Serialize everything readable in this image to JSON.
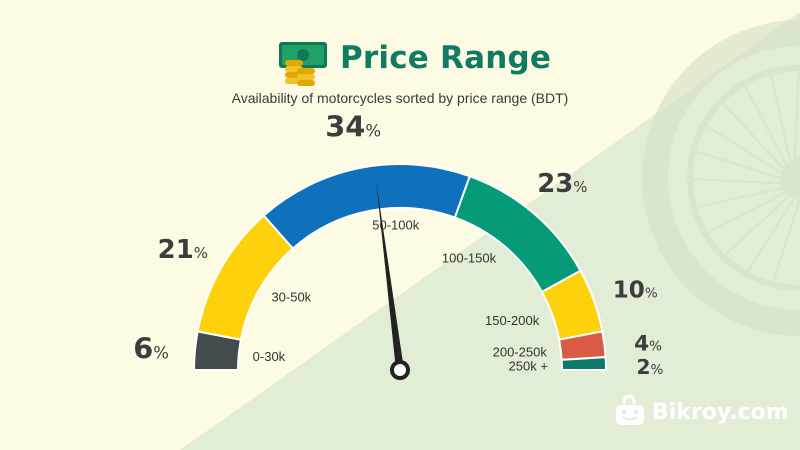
{
  "header": {
    "title": "Price Range",
    "subtitle": "Availability of motorcycles sorted by price range (BDT)",
    "title_icon": "money-coins-icon"
  },
  "brand": {
    "name": "Bikroy.com",
    "icon": "smiley-bag-icon"
  },
  "colors": {
    "background": "#fdfbe3",
    "background_right": "#e2edd6",
    "title": "#117a63",
    "needle": "#222222"
  },
  "chart_data": {
    "type": "gauge",
    "title": "Price Range",
    "subtitle": "Availability of motorcycles sorted by price range (BDT)",
    "unit": "%",
    "segments": [
      {
        "category": "0-30k",
        "value": 6,
        "color": "#444b4c"
      },
      {
        "category": "30-50k",
        "value": 21,
        "color": "#fdd10c"
      },
      {
        "category": "50-100k",
        "value": 34,
        "color": "#0f71bc"
      },
      {
        "category": "100-150k",
        "value": 23,
        "color": "#059a78"
      },
      {
        "category": "150-200k",
        "value": 10,
        "color": "#fdd10c"
      },
      {
        "category": "200-250k",
        "value": 4,
        "color": "#d95a45"
      },
      {
        "category": "250k +",
        "value": 2,
        "color": "#0d7a67"
      }
    ],
    "needle_fraction": 0.46
  }
}
